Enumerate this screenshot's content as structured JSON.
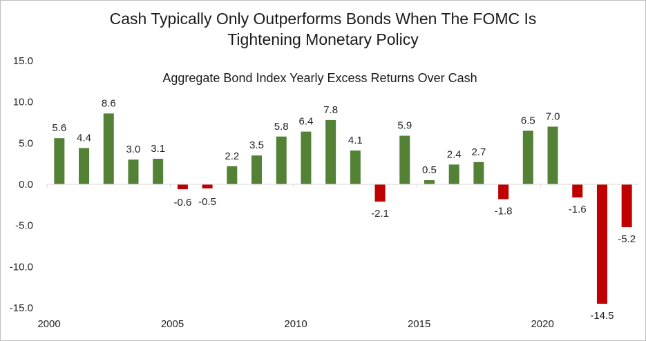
{
  "title_line1": "Cash Typically Only Outperforms Bonds When The FOMC Is",
  "title_line2": "Tightening Monetary Policy",
  "chart_data": {
    "type": "bar",
    "subtitle": "Aggregate Bond Index Yearly Excess Returns Over Cash",
    "categories": [
      "2000",
      "2001",
      "2002",
      "2003",
      "2004",
      "2005",
      "2006",
      "2007",
      "2008",
      "2009",
      "2010",
      "2011",
      "2012",
      "2013",
      "2014",
      "2015",
      "2016",
      "2017",
      "2018",
      "2019",
      "2020",
      "2021",
      "2022",
      "2023"
    ],
    "values": [
      5.6,
      4.4,
      8.6,
      3.0,
      3.1,
      -0.6,
      -0.5,
      2.2,
      3.5,
      5.8,
      6.4,
      7.8,
      4.1,
      -2.1,
      5.9,
      0.5,
      2.4,
      2.7,
      -1.8,
      6.5,
      7.0,
      -1.6,
      -14.5,
      -5.2
    ],
    "data_labels": [
      "5.6",
      "4.4",
      "8.6",
      "3.0",
      "3.1",
      "-0.6",
      "-0.5",
      "2.2",
      "3.5",
      "5.8",
      "6.4",
      "7.8",
      "4.1",
      "-2.1",
      "5.9",
      "0.5",
      "2.4",
      "2.7",
      "-1.8",
      "6.5",
      "7.0",
      "-1.6",
      "-14.5",
      "-5.2"
    ],
    "ylim": [
      -15,
      15
    ],
    "yticks": [
      "15.0",
      "10.0",
      "5.0",
      "0.0",
      "-5.0",
      "-10.0",
      "-15.0"
    ],
    "ytick_values": [
      15,
      10,
      5,
      0,
      -5,
      -10,
      -15
    ],
    "xticks": [
      "2000",
      "2005",
      "2010",
      "2015",
      "2020"
    ],
    "xtick_indices": [
      0,
      5,
      10,
      15,
      20
    ],
    "grid": false,
    "colors": {
      "positive": "#538135",
      "negative": "#c00000",
      "axis": "#d9d9d9"
    }
  }
}
